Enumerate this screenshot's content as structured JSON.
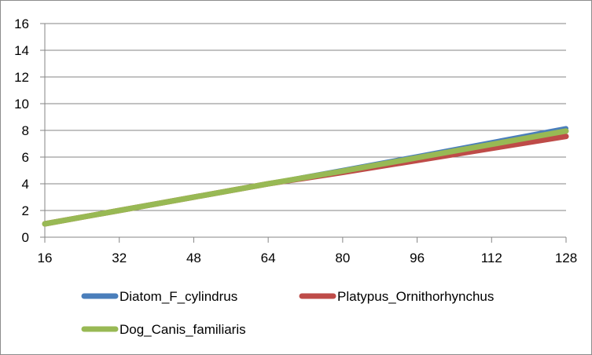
{
  "chart_data": {
    "type": "line",
    "x": [
      16,
      32,
      48,
      64,
      80,
      96,
      112,
      128
    ],
    "xlim": [
      16,
      128
    ],
    "ylim": [
      0,
      16
    ],
    "x_ticks": [
      16,
      32,
      48,
      64,
      80,
      96,
      112,
      128
    ],
    "y_ticks": [
      0,
      2,
      4,
      6,
      8,
      10,
      12,
      14,
      16
    ],
    "grid": "horizontal",
    "legend_position": "bottom",
    "series": [
      {
        "name": "Diatom_F_cylindrus",
        "color": "#4a7ebb",
        "values": [
          1.0,
          2.0,
          3.0,
          4.0,
          5.02,
          6.05,
          7.1,
          8.15
        ]
      },
      {
        "name": "Platypus_Ornithorhynchus",
        "color": "#be4b48",
        "values": [
          1.0,
          2.0,
          3.0,
          4.0,
          4.85,
          5.75,
          6.65,
          7.55
        ]
      },
      {
        "name": "Dog_Canis_familiaris",
        "color": "#98b954",
        "values": [
          1.0,
          2.0,
          3.0,
          4.0,
          4.95,
          5.95,
          6.95,
          7.95
        ]
      }
    ]
  }
}
